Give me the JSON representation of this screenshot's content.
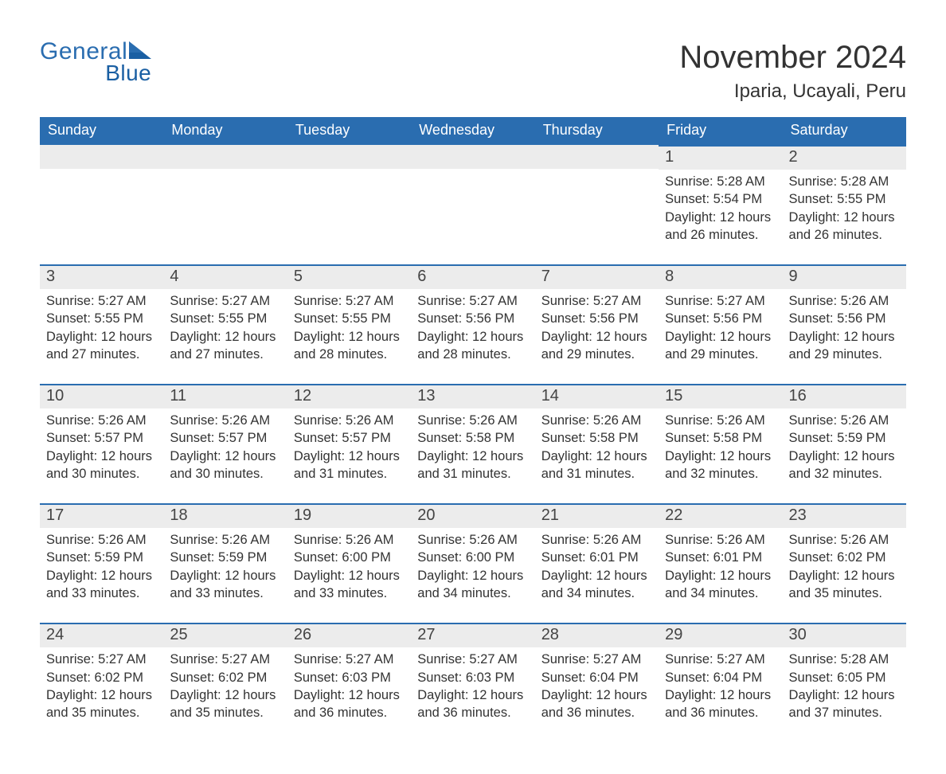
{
  "logo": {
    "general": "General",
    "blue": "Blue",
    "color": "#2a6db0",
    "tri_color": "#1a5fa3"
  },
  "title": "November 2024",
  "location": "Iparia, Ucayali, Peru",
  "colors": {
    "header_bg": "#2a6db0",
    "header_text": "#ffffff",
    "daynum_bg": "#ececec",
    "daynum_border": "#2a6db0",
    "body_text": "#333333",
    "page_bg": "#ffffff"
  },
  "typography": {
    "title_fontsize": 40,
    "location_fontsize": 24,
    "header_fontsize": 18,
    "daynum_fontsize": 20,
    "body_fontsize": 16.5,
    "font_family": "Segoe UI"
  },
  "labels": {
    "sunrise": "Sunrise: ",
    "sunset": "Sunset: ",
    "daylight": "Daylight: "
  },
  "dow": [
    "Sunday",
    "Monday",
    "Tuesday",
    "Wednesday",
    "Thursday",
    "Friday",
    "Saturday"
  ],
  "weeks": [
    [
      null,
      null,
      null,
      null,
      null,
      {
        "n": "1",
        "sr": "5:28 AM",
        "ss": "5:54 PM",
        "dl": "12 hours and 26 minutes."
      },
      {
        "n": "2",
        "sr": "5:28 AM",
        "ss": "5:55 PM",
        "dl": "12 hours and 26 minutes."
      }
    ],
    [
      {
        "n": "3",
        "sr": "5:27 AM",
        "ss": "5:55 PM",
        "dl": "12 hours and 27 minutes."
      },
      {
        "n": "4",
        "sr": "5:27 AM",
        "ss": "5:55 PM",
        "dl": "12 hours and 27 minutes."
      },
      {
        "n": "5",
        "sr": "5:27 AM",
        "ss": "5:55 PM",
        "dl": "12 hours and 28 minutes."
      },
      {
        "n": "6",
        "sr": "5:27 AM",
        "ss": "5:56 PM",
        "dl": "12 hours and 28 minutes."
      },
      {
        "n": "7",
        "sr": "5:27 AM",
        "ss": "5:56 PM",
        "dl": "12 hours and 29 minutes."
      },
      {
        "n": "8",
        "sr": "5:27 AM",
        "ss": "5:56 PM",
        "dl": "12 hours and 29 minutes."
      },
      {
        "n": "9",
        "sr": "5:26 AM",
        "ss": "5:56 PM",
        "dl": "12 hours and 29 minutes."
      }
    ],
    [
      {
        "n": "10",
        "sr": "5:26 AM",
        "ss": "5:57 PM",
        "dl": "12 hours and 30 minutes."
      },
      {
        "n": "11",
        "sr": "5:26 AM",
        "ss": "5:57 PM",
        "dl": "12 hours and 30 minutes."
      },
      {
        "n": "12",
        "sr": "5:26 AM",
        "ss": "5:57 PM",
        "dl": "12 hours and 31 minutes."
      },
      {
        "n": "13",
        "sr": "5:26 AM",
        "ss": "5:58 PM",
        "dl": "12 hours and 31 minutes."
      },
      {
        "n": "14",
        "sr": "5:26 AM",
        "ss": "5:58 PM",
        "dl": "12 hours and 31 minutes."
      },
      {
        "n": "15",
        "sr": "5:26 AM",
        "ss": "5:58 PM",
        "dl": "12 hours and 32 minutes."
      },
      {
        "n": "16",
        "sr": "5:26 AM",
        "ss": "5:59 PM",
        "dl": "12 hours and 32 minutes."
      }
    ],
    [
      {
        "n": "17",
        "sr": "5:26 AM",
        "ss": "5:59 PM",
        "dl": "12 hours and 33 minutes."
      },
      {
        "n": "18",
        "sr": "5:26 AM",
        "ss": "5:59 PM",
        "dl": "12 hours and 33 minutes."
      },
      {
        "n": "19",
        "sr": "5:26 AM",
        "ss": "6:00 PM",
        "dl": "12 hours and 33 minutes."
      },
      {
        "n": "20",
        "sr": "5:26 AM",
        "ss": "6:00 PM",
        "dl": "12 hours and 34 minutes."
      },
      {
        "n": "21",
        "sr": "5:26 AM",
        "ss": "6:01 PM",
        "dl": "12 hours and 34 minutes."
      },
      {
        "n": "22",
        "sr": "5:26 AM",
        "ss": "6:01 PM",
        "dl": "12 hours and 34 minutes."
      },
      {
        "n": "23",
        "sr": "5:26 AM",
        "ss": "6:02 PM",
        "dl": "12 hours and 35 minutes."
      }
    ],
    [
      {
        "n": "24",
        "sr": "5:27 AM",
        "ss": "6:02 PM",
        "dl": "12 hours and 35 minutes."
      },
      {
        "n": "25",
        "sr": "5:27 AM",
        "ss": "6:02 PM",
        "dl": "12 hours and 35 minutes."
      },
      {
        "n": "26",
        "sr": "5:27 AM",
        "ss": "6:03 PM",
        "dl": "12 hours and 36 minutes."
      },
      {
        "n": "27",
        "sr": "5:27 AM",
        "ss": "6:03 PM",
        "dl": "12 hours and 36 minutes."
      },
      {
        "n": "28",
        "sr": "5:27 AM",
        "ss": "6:04 PM",
        "dl": "12 hours and 36 minutes."
      },
      {
        "n": "29",
        "sr": "5:27 AM",
        "ss": "6:04 PM",
        "dl": "12 hours and 36 minutes."
      },
      {
        "n": "30",
        "sr": "5:28 AM",
        "ss": "6:05 PM",
        "dl": "12 hours and 37 minutes."
      }
    ]
  ]
}
